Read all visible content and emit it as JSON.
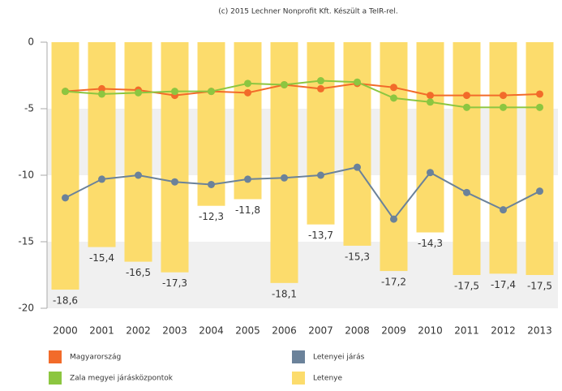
{
  "chart_data": {
    "type": "bar",
    "title": "(c) 2015 Lechner Nonprofit Kft. Készült a TeIR-rel.",
    "categories": [
      "2000",
      "2001",
      "2002",
      "2003",
      "2004",
      "2005",
      "2006",
      "2007",
      "2008",
      "2009",
      "2010",
      "2011",
      "2012",
      "2013"
    ],
    "ylim": [
      -20,
      0
    ],
    "yticks": [
      -20,
      -15,
      -10,
      -5,
      0
    ],
    "series": [
      {
        "name": "Magyarország",
        "type": "line",
        "color": "#f26b2a",
        "values": [
          -3.7,
          -3.5,
          -3.6,
          -4.0,
          -3.7,
          -3.8,
          -3.2,
          -3.5,
          -3.1,
          -3.4,
          -4.0,
          -4.0,
          -4.0,
          -3.9
        ]
      },
      {
        "name": "Letenyei járás",
        "type": "line",
        "color": "#6b829a",
        "values": [
          -11.7,
          -10.3,
          -10.0,
          -10.5,
          -10.7,
          -10.3,
          -10.2,
          -10.0,
          -9.4,
          -13.3,
          -9.8,
          -11.3,
          -12.6,
          -11.2
        ]
      },
      {
        "name": "Zala megyei járásközpontok",
        "type": "line",
        "color": "#8cc640",
        "values": [
          -3.7,
          -3.9,
          -3.8,
          -3.7,
          -3.7,
          -3.1,
          -3.2,
          -2.9,
          -3.0,
          -4.2,
          -4.5,
          -4.9,
          -4.9,
          -4.9
        ]
      },
      {
        "name": "Letenye",
        "type": "bar",
        "color": "#fcdc6c",
        "values": [
          -18.6,
          -15.4,
          -16.5,
          -17.3,
          -12.3,
          -11.8,
          -18.1,
          -13.7,
          -15.3,
          -17.2,
          -14.3,
          -17.5,
          -17.4,
          -17.5
        ],
        "value_labels": [
          "-18,6",
          "-15,4",
          "-16,5",
          "-17,3",
          "-12,3",
          "-11,8",
          "-18,1",
          "-13,7",
          "-15,3",
          "-17,2",
          "-14,3",
          "-17,5",
          "-17,4",
          "-17,5"
        ]
      }
    ]
  }
}
